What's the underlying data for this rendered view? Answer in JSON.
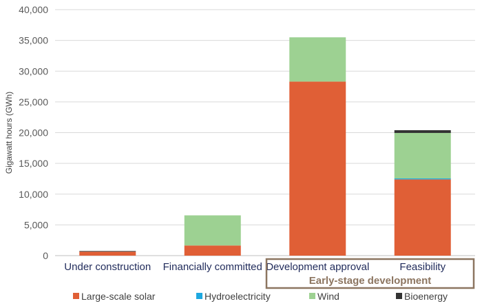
{
  "chart_data": {
    "type": "bar",
    "stacked": true,
    "categories": [
      "Under construction",
      "Financially committed",
      "Development approval",
      "Feasibility"
    ],
    "series": [
      {
        "name": "Large-scale solar",
        "color": "#e05f36",
        "values": [
          650,
          1650,
          28300,
          12400
        ]
      },
      {
        "name": "Hydroelectricity",
        "color": "#1ea8e0",
        "values": [
          0,
          0,
          0,
          150
        ]
      },
      {
        "name": "Wind",
        "color": "#9dd192",
        "values": [
          0,
          4900,
          7200,
          7400
        ]
      },
      {
        "name": "Bioenergy",
        "color": "#333333",
        "values": [
          100,
          0,
          0,
          450
        ]
      }
    ],
    "ylabel": "Gigawatt hours (GWh)",
    "ylim": [
      0,
      40000
    ],
    "yticks": [
      0,
      5000,
      10000,
      15000,
      20000,
      25000,
      30000,
      35000,
      40000
    ],
    "ytick_labels": [
      "0",
      "5,000",
      "10,000",
      "15,000",
      "20,000",
      "25,000",
      "30,000",
      "35,000",
      "40,000"
    ],
    "grid": true,
    "legend_position": "bottom",
    "group_annotation": {
      "label": "Early-stage development",
      "categories": [
        "Development approval",
        "Feasibility"
      ],
      "border_color": "#8c7560"
    }
  }
}
